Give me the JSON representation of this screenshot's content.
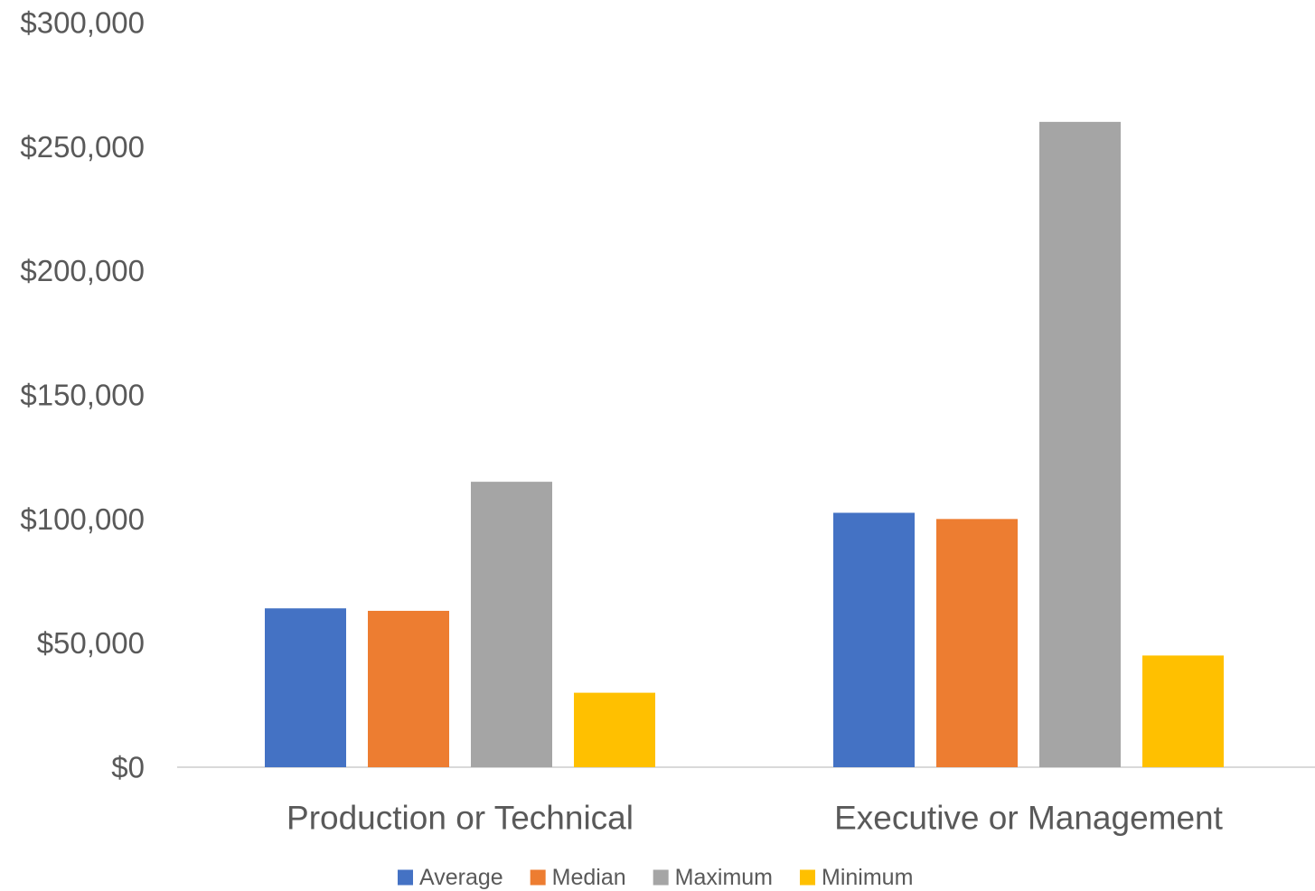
{
  "chart_data": {
    "type": "bar",
    "categories": [
      "Production or Technical",
      "Executive or Management"
    ],
    "series": [
      {
        "name": "Average",
        "color": "#4472C4",
        "values": [
          64000,
          102500
        ]
      },
      {
        "name": "Median",
        "color": "#ED7D31",
        "values": [
          63000,
          100000
        ]
      },
      {
        "name": "Maximum",
        "color": "#A5A5A5",
        "values": [
          115000,
          260000
        ]
      },
      {
        "name": "Minimum",
        "color": "#FFC000",
        "values": [
          30000,
          45000
        ]
      }
    ],
    "y_ticks": [
      "$0",
      "$50,000",
      "$100,000",
      "$150,000",
      "$200,000",
      "$250,000",
      "$300,000"
    ],
    "ylim": [
      0,
      300000
    ],
    "legend_position": "bottom",
    "grid": false
  }
}
